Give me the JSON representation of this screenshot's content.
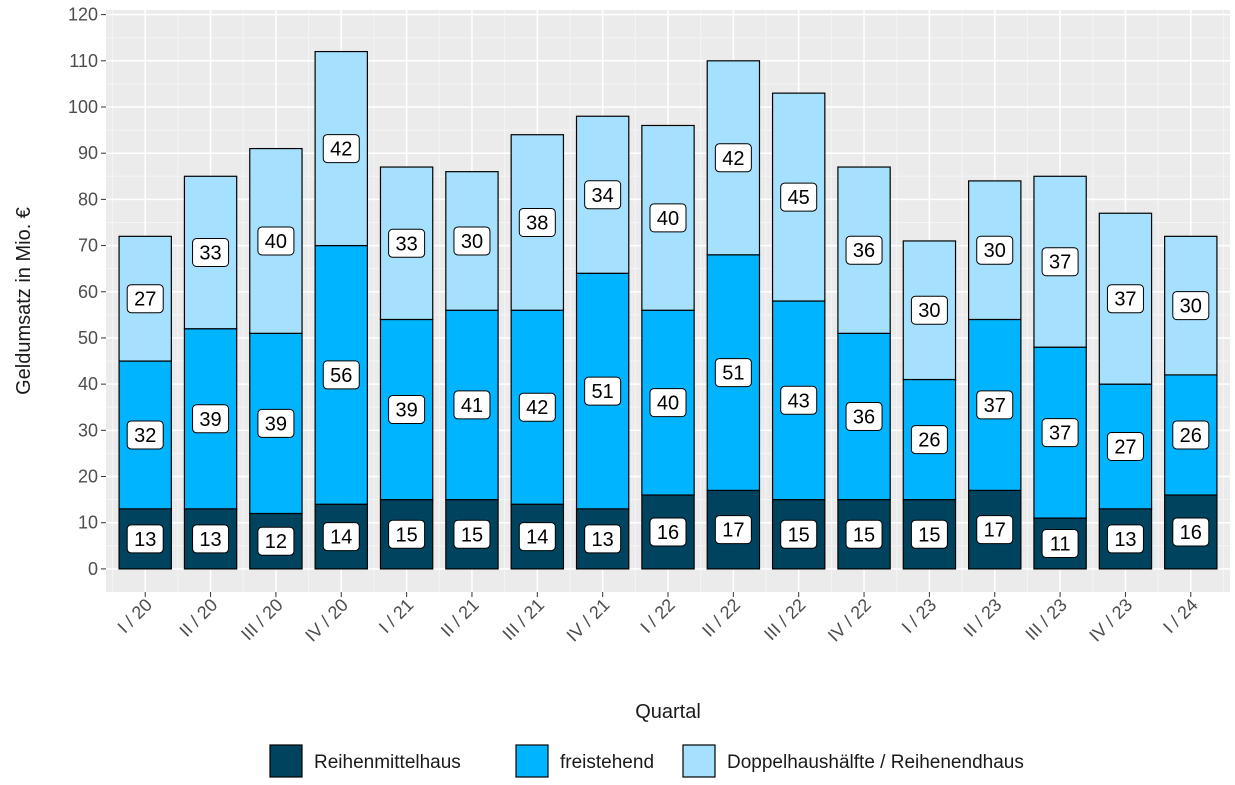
{
  "chart_data": {
    "type": "bar",
    "stacked": true,
    "categories": [
      "I / 20",
      "II / 20",
      "III / 20",
      "IV / 20",
      "I / 21",
      "II / 21",
      "III / 21",
      "IV / 21",
      "I / 22",
      "II / 22",
      "III / 22",
      "IV / 22",
      "I / 23",
      "II / 23",
      "III / 23",
      "IV / 23",
      "I / 24"
    ],
    "series": [
      {
        "name": "Reihenmittelhaus",
        "color": "#00435f",
        "values": [
          13,
          13,
          12,
          14,
          15,
          15,
          14,
          13,
          16,
          17,
          15,
          15,
          15,
          17,
          11,
          13,
          16
        ]
      },
      {
        "name": "freistehend",
        "color": "#00b4ff",
        "values": [
          32,
          39,
          39,
          56,
          39,
          41,
          42,
          51,
          40,
          51,
          43,
          36,
          26,
          37,
          37,
          27,
          26
        ]
      },
      {
        "name": "Doppelhaushälfte / Reihenendhaus",
        "color": "#a5e1ff",
        "values": [
          27,
          33,
          40,
          42,
          33,
          30,
          38,
          34,
          40,
          42,
          45,
          36,
          30,
          30,
          37,
          37,
          30
        ]
      }
    ],
    "xlabel": "Quartal",
    "ylabel": "Geldumsatz in Mio. €",
    "ylim": [
      -5,
      121
    ],
    "yticks": [
      0,
      10,
      20,
      30,
      40,
      50,
      60,
      70,
      80,
      90,
      100,
      110,
      120
    ],
    "grid": true,
    "legend_position": "bottom"
  }
}
